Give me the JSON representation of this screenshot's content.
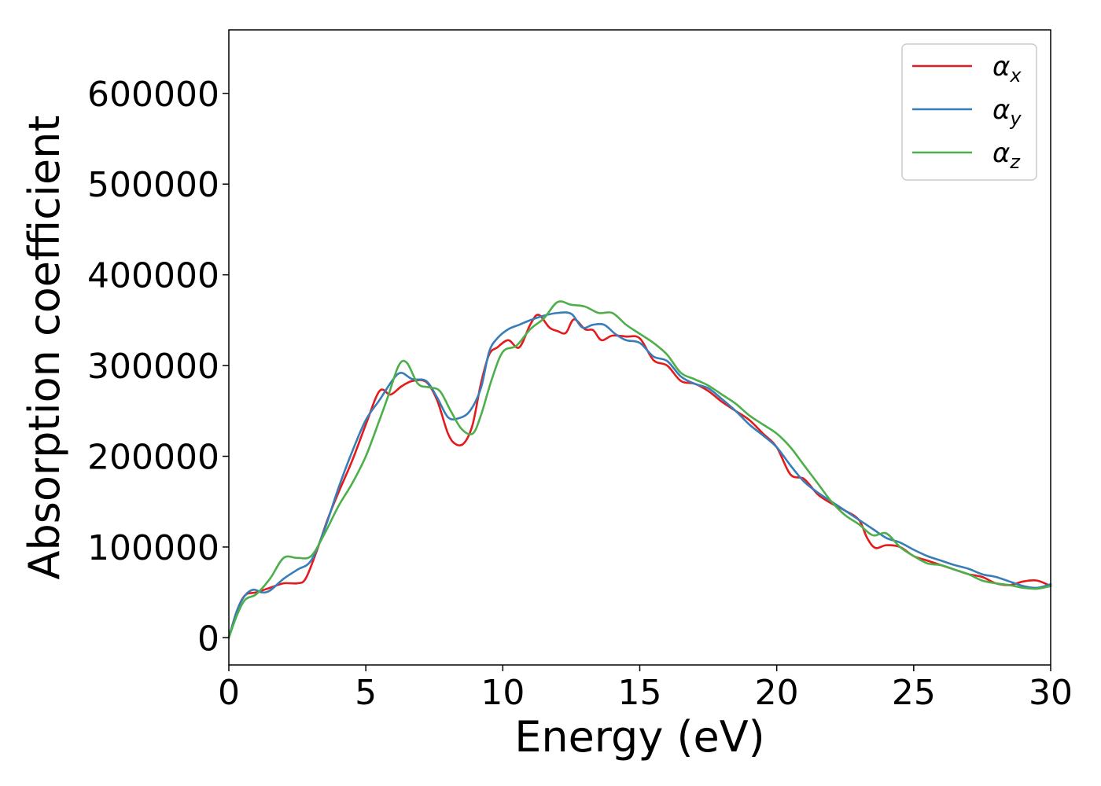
{
  "chart_data": {
    "type": "line",
    "xlabel": "Energy (eV)",
    "ylabel": "Absorption coefficient",
    "xlim": [
      0,
      30
    ],
    "ylim": [
      -30000,
      670000
    ],
    "xticks": [
      "0",
      "5",
      "10",
      "15",
      "20",
      "25",
      "30"
    ],
    "yticks": [
      "0",
      "100000",
      "200000",
      "300000",
      "400000",
      "500000",
      "600000"
    ],
    "grid": false,
    "legend_position": "top-right",
    "series": [
      {
        "name": "α_x",
        "symbol": "α",
        "subscript": "x",
        "color": "#e41a1c",
        "x": [
          0,
          0.3,
          0.6,
          1.0,
          1.5,
          2.0,
          2.5,
          2.8,
          3.2,
          3.6,
          4.0,
          4.5,
          5.0,
          5.5,
          5.9,
          6.3,
          6.7,
          7.2,
          7.6,
          8.0,
          8.3,
          8.6,
          8.9,
          9.2,
          9.5,
          9.8,
          10.2,
          10.6,
          11.0,
          11.3,
          11.7,
          12.0,
          12.3,
          12.6,
          13.0,
          13.3,
          13.6,
          14.0,
          14.5,
          15.0,
          15.5,
          16.0,
          16.5,
          17.0,
          17.5,
          18.0,
          18.5,
          19.0,
          19.5,
          20.0,
          20.5,
          21.0,
          21.5,
          22.0,
          22.5,
          23.0,
          23.3,
          23.6,
          24.0,
          24.5,
          25.0,
          25.5,
          26.0,
          26.5,
          27.0,
          27.5,
          28.0,
          28.5,
          29.0,
          29.5,
          30.0
        ],
        "y": [
          0,
          30000,
          47000,
          50000,
          55000,
          60000,
          60000,
          65000,
          95000,
          130000,
          160000,
          195000,
          235000,
          272000,
          268000,
          277000,
          283000,
          282000,
          262000,
          225000,
          213000,
          215000,
          235000,
          280000,
          312000,
          320000,
          328000,
          320000,
          345000,
          356000,
          342000,
          338000,
          336000,
          351000,
          340000,
          339000,
          328000,
          333000,
          332000,
          330000,
          306000,
          300000,
          283000,
          280000,
          272000,
          260000,
          250000,
          240000,
          225000,
          210000,
          180000,
          175000,
          158000,
          148000,
          140000,
          130000,
          110000,
          99000,
          102000,
          100000,
          90000,
          85000,
          80000,
          75000,
          70000,
          67000,
          60000,
          58000,
          62000,
          63000,
          57000
        ]
      },
      {
        "name": "α_y",
        "symbol": "α",
        "subscript": "y",
        "color": "#377eb8",
        "x": [
          0,
          0.3,
          0.6,
          0.9,
          1.2,
          1.5,
          2.0,
          2.5,
          3.0,
          3.5,
          4.0,
          4.5,
          5.0,
          5.5,
          6.0,
          6.3,
          6.7,
          7.2,
          7.6,
          8.0,
          8.4,
          8.8,
          9.2,
          9.5,
          9.8,
          10.2,
          10.6,
          11.0,
          11.5,
          12.0,
          12.5,
          12.9,
          13.3,
          13.7,
          14.1,
          14.5,
          15.0,
          15.5,
          16.0,
          16.5,
          17.0,
          17.5,
          18.0,
          18.5,
          19.0,
          19.5,
          20.0,
          20.5,
          21.0,
          21.5,
          22.0,
          22.5,
          23.0,
          23.5,
          24.0,
          24.5,
          25.0,
          25.5,
          26.0,
          26.5,
          27.0,
          27.5,
          28.0,
          28.5,
          29.0,
          29.5,
          30.0
        ],
        "y": [
          0,
          30000,
          47000,
          53000,
          50000,
          52000,
          65000,
          75000,
          85000,
          120000,
          165000,
          205000,
          240000,
          262000,
          285000,
          292000,
          285000,
          283000,
          265000,
          243000,
          242000,
          250000,
          275000,
          315000,
          330000,
          340000,
          345000,
          350000,
          355000,
          358000,
          357000,
          342000,
          345000,
          345000,
          335000,
          328000,
          325000,
          310000,
          305000,
          288000,
          280000,
          275000,
          263000,
          250000,
          235000,
          223000,
          210000,
          190000,
          172000,
          160000,
          150000,
          140000,
          130000,
          120000,
          110000,
          105000,
          97000,
          90000,
          85000,
          80000,
          76000,
          70000,
          67000,
          62000,
          57000,
          55000,
          59000
        ]
      },
      {
        "name": "α_z",
        "symbol": "α",
        "subscript": "z",
        "color": "#4daf4a",
        "x": [
          0,
          0.3,
          0.6,
          1.0,
          1.5,
          2.0,
          2.5,
          3.0,
          3.5,
          4.0,
          4.5,
          5.0,
          5.5,
          5.8,
          6.2,
          6.5,
          6.9,
          7.3,
          7.7,
          8.1,
          8.5,
          8.9,
          9.2,
          9.6,
          10.0,
          10.5,
          11.0,
          11.5,
          12.0,
          12.5,
          13.0,
          13.5,
          14.0,
          14.5,
          15.0,
          15.5,
          16.0,
          16.5,
          17.0,
          17.5,
          18.0,
          18.5,
          19.0,
          19.5,
          20.0,
          20.5,
          21.0,
          21.5,
          22.0,
          22.5,
          23.0,
          23.5,
          24.0,
          24.5,
          25.0,
          25.5,
          26.0,
          26.5,
          27.0,
          27.5,
          28.0,
          28.5,
          29.0,
          29.5,
          30.0
        ],
        "y": [
          0,
          25000,
          42000,
          48000,
          65000,
          88000,
          88000,
          90000,
          115000,
          145000,
          170000,
          200000,
          240000,
          265000,
          300000,
          303000,
          280000,
          276000,
          272000,
          250000,
          230000,
          225000,
          245000,
          285000,
          315000,
          322000,
          340000,
          352000,
          370000,
          367000,
          365000,
          358000,
          358000,
          345000,
          335000,
          325000,
          312000,
          292000,
          285000,
          278000,
          268000,
          258000,
          245000,
          235000,
          225000,
          210000,
          190000,
          170000,
          150000,
          135000,
          125000,
          113000,
          115000,
          100000,
          90000,
          82000,
          80000,
          75000,
          70000,
          63000,
          60000,
          58000,
          55000,
          54000,
          57000
        ]
      }
    ]
  }
}
